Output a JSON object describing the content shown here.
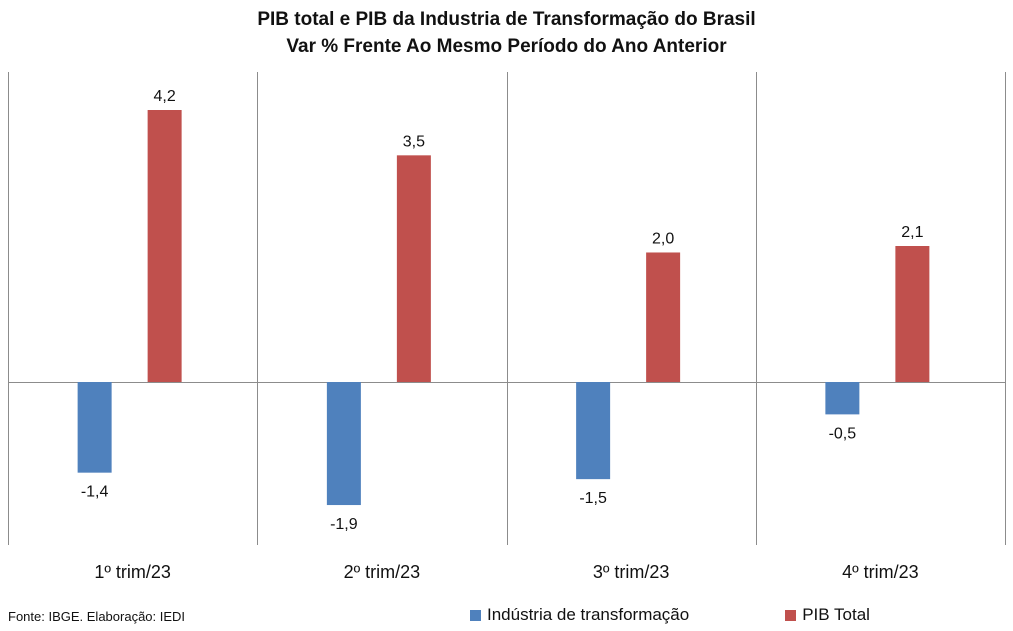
{
  "title": {
    "line1": "PIB total e PIB da Industria de Transformação do Brasil",
    "line2": "Var % Frente Ao Mesmo Período do Ano Anterior"
  },
  "source": "Fonte: IBGE. Elaboração: IEDI",
  "colors": {
    "industria": "#4f81bd",
    "pib": "#c0504d",
    "axis": "#8c8c8c"
  },
  "chart_data": {
    "type": "bar",
    "categories": [
      "1º trim/23",
      "2º trim/23",
      "3º trim/23",
      "4º trim/23"
    ],
    "series": [
      {
        "name": "Indústria de transformação",
        "values": [
          -1.4,
          -1.9,
          -1.5,
          -0.5
        ],
        "labels": [
          "-1,4",
          "-1,9",
          "-1,5",
          "-0,5"
        ]
      },
      {
        "name": "PIB Total",
        "values": [
          4.2,
          3.5,
          2.0,
          2.1
        ],
        "labels": [
          "4,2",
          "3,5",
          "2,0",
          "2,1"
        ]
      }
    ],
    "ylim": [
      -2.6,
      4.8
    ],
    "grid": "vertical separators",
    "legend": "bottom"
  }
}
